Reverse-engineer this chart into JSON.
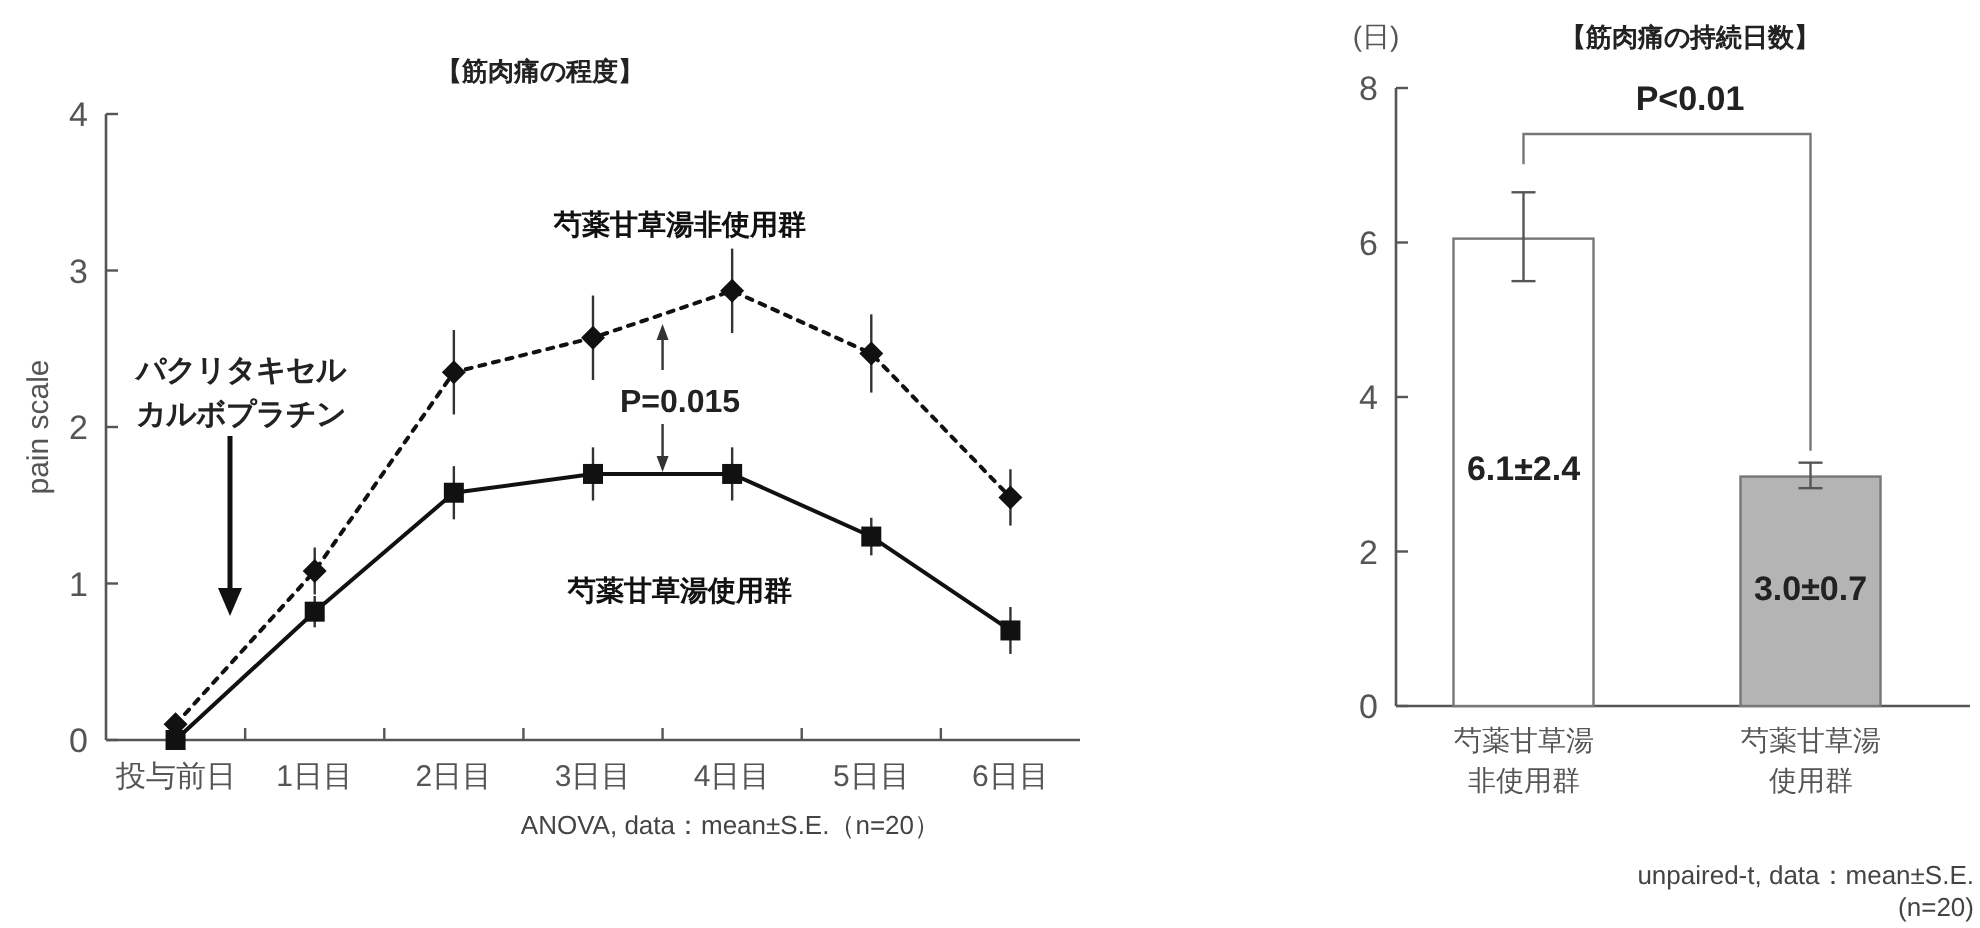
{
  "chart_data": [
    {
      "type": "line",
      "title": "【筋肉痛の程度】",
      "ylabel": "pain scale",
      "categories": [
        "投与前日",
        "1日目",
        "2日目",
        "3日目",
        "4日目",
        "5日目",
        "6日目"
      ],
      "ylim": [
        0,
        4
      ],
      "yticks": [
        0,
        1,
        2,
        3,
        4
      ],
      "series": [
        {
          "name": "芍薬甘草湯非使用群",
          "color": "#111111",
          "marker": "diamond",
          "line_style": "dotted",
          "values": [
            0.1,
            1.08,
            2.35,
            2.57,
            2.87,
            2.47,
            1.55
          ],
          "errors": [
            null,
            0.15,
            0.27,
            0.27,
            0.27,
            0.25,
            0.18
          ]
        },
        {
          "name": "芍薬甘草湯使用群",
          "color": "#111111",
          "marker": "square",
          "line_style": "solid",
          "values": [
            0,
            0.82,
            1.58,
            1.7,
            1.7,
            1.3,
            0.7
          ],
          "errors": [
            null,
            0.1,
            0.17,
            0.17,
            0.17,
            0.12,
            0.15
          ]
        }
      ],
      "annotations": [
        "パクリタキセルカルボプラチン",
        "P=0.015",
        "ANOVA, data：mean±S.E.（n=20）"
      ]
    },
    {
      "type": "bar",
      "title": "【筋肉痛の持続日数】",
      "ylabel": "(日)",
      "categories": [
        "芍薬甘草湯非使用群",
        "芍薬甘草湯使用群"
      ],
      "values": [
        6.05,
        2.97
      ],
      "colors": [
        "#ffffff",
        "#b4b4b4"
      ],
      "errors": [
        [
          5.5,
          6.65
        ],
        [
          2.82,
          3.15
        ]
      ],
      "value_labels": [
        "6.1±2.4",
        "3.0±0.7"
      ],
      "ylim": [
        0,
        8
      ],
      "yticks": [
        0,
        2,
        4,
        6,
        8
      ],
      "annotations": [
        "P<0.01",
        "unpaired-t, data：mean±S.E.\n(n=20)"
      ]
    }
  ]
}
